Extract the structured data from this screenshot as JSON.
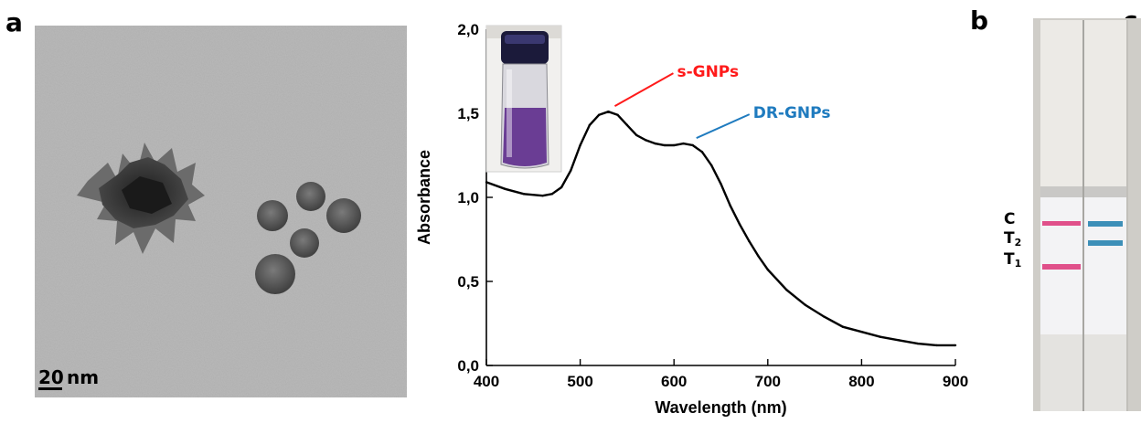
{
  "panels": {
    "a": "a",
    "b": "b",
    "c": "c"
  },
  "tem": {
    "scale_number": "20",
    "scale_unit": " nm"
  },
  "chart_data": {
    "type": "line",
    "xlabel": "Wavelength (nm)",
    "ylabel": "Absorbance",
    "xlim": [
      400,
      900
    ],
    "ylim": [
      0,
      2
    ],
    "xticks": [
      "400",
      "500",
      "600",
      "700",
      "800",
      "900"
    ],
    "yticks": [
      "0,0",
      "0,5",
      "1,0",
      "1,5",
      "2,0"
    ],
    "grid": false,
    "x": [
      400,
      420,
      440,
      460,
      470,
      480,
      490,
      500,
      510,
      520,
      530,
      540,
      550,
      560,
      570,
      580,
      590,
      600,
      610,
      620,
      630,
      640,
      650,
      660,
      670,
      680,
      690,
      700,
      720,
      740,
      760,
      780,
      800,
      820,
      840,
      860,
      880,
      900
    ],
    "y": [
      1.09,
      1.05,
      1.02,
      1.01,
      1.02,
      1.06,
      1.16,
      1.31,
      1.43,
      1.49,
      1.51,
      1.49,
      1.43,
      1.37,
      1.34,
      1.32,
      1.31,
      1.31,
      1.32,
      1.31,
      1.27,
      1.19,
      1.08,
      0.95,
      0.84,
      0.74,
      0.65,
      0.57,
      0.45,
      0.36,
      0.29,
      0.23,
      0.2,
      0.17,
      0.15,
      0.13,
      0.12,
      0.12
    ],
    "annotations": [
      {
        "text": "s-GNPs",
        "color": "#ff1a1a",
        "x": 533,
        "y": 1.51
      },
      {
        "text": "DR-GNPs",
        "color": "#1f7bbf",
        "x": 620,
        "y": 1.32
      }
    ]
  },
  "strip": {
    "lane_labels": {
      "C": "C",
      "T2": "T",
      "T2_sub": "2",
      "T1": "T",
      "T1_sub": "1"
    },
    "colors": {
      "s_line": "#e0508a",
      "dr_line": "#3d8fb8"
    }
  }
}
